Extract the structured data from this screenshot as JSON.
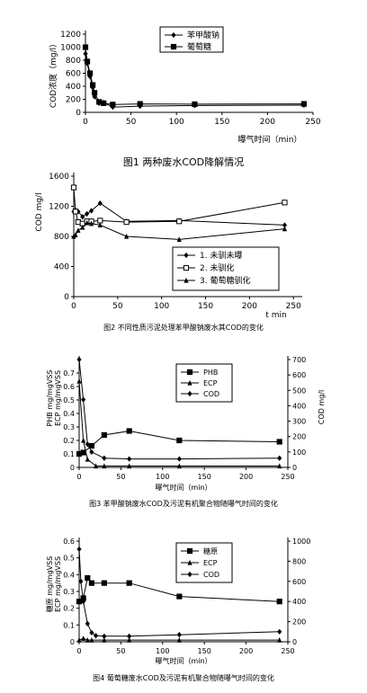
{
  "chart_data": [
    {
      "type": "line",
      "caption": "图1  两种废水COD降解情况",
      "ylabel": "COD浓度（mg/l）",
      "xlabel": "曝气时间（min）",
      "x_ticks": [
        0,
        50,
        100,
        150,
        200,
        250
      ],
      "y_ticks": [
        0,
        200,
        400,
        600,
        800,
        1000,
        1200
      ],
      "xlim": [
        0,
        250
      ],
      "ylim": [
        0,
        1200
      ],
      "legend_position": "top-center",
      "grid": false,
      "series": [
        {
          "name": "苯甲酸钠",
          "marker": "diamond",
          "x": [
            0,
            2,
            5,
            8,
            10,
            15,
            20,
            30,
            60,
            120,
            240
          ],
          "y": [
            900,
            750,
            550,
            380,
            240,
            140,
            150,
            80,
            95,
            105,
            110
          ]
        },
        {
          "name": "葡萄糖",
          "marker": "square",
          "x": [
            0,
            2,
            5,
            8,
            10,
            15,
            20,
            30,
            60,
            120,
            240
          ],
          "y": [
            1000,
            780,
            600,
            420,
            300,
            160,
            140,
            120,
            130,
            125,
            130
          ]
        }
      ]
    },
    {
      "type": "line",
      "caption": "图2 不同性质污泥处理苯甲酸钠废水其COD的变化",
      "ylabel": "COD mg/l",
      "xlabel": "t min",
      "x_ticks": [
        0,
        50,
        100,
        150,
        200,
        250
      ],
      "y_ticks": [
        0,
        400,
        800,
        1200,
        1600
      ],
      "xlim": [
        0,
        260
      ],
      "ylim": [
        0,
        1600
      ],
      "legend_position": "lower-right",
      "grid": false,
      "series": [
        {
          "name": "1. 未驯未曝",
          "marker": "diamond",
          "x": [
            0,
            2,
            5,
            10,
            15,
            20,
            30,
            60,
            120,
            240
          ],
          "y": [
            1130,
            1150,
            1130,
            1060,
            1100,
            1140,
            1240,
            1000,
            1010,
            950
          ]
        },
        {
          "name": "2. 未驯化",
          "marker": "square",
          "x": [
            0,
            2,
            5,
            10,
            15,
            20,
            30,
            60,
            120,
            240
          ],
          "y": [
            1450,
            1130,
            990,
            970,
            1000,
            1000,
            1010,
            990,
            1000,
            1250
          ]
        },
        {
          "name": "3. 葡萄糖驯化",
          "marker": "triangle",
          "x": [
            0,
            2,
            5,
            10,
            15,
            20,
            30,
            60,
            120,
            240
          ],
          "y": [
            800,
            820,
            880,
            920,
            980,
            970,
            950,
            800,
            760,
            900
          ]
        }
      ]
    },
    {
      "type": "line",
      "caption": "图3 苯甲酸钠废水COD及污泥有机聚合物随曝气时间的变化",
      "ylabel": "PHB mg/mgVSS\nECP mg/mgVSS",
      "ylabel_right": "COD mg/l",
      "xlabel": "曝气时间（min）",
      "x_ticks": [
        0,
        50,
        100,
        150,
        200,
        250
      ],
      "y_ticks": [
        0,
        0.1,
        0.2,
        0.3,
        0.4,
        0.5,
        0.6,
        0.7
      ],
      "y2_ticks": [
        0,
        100,
        200,
        300,
        400,
        500,
        600,
        700
      ],
      "xlim": [
        0,
        250
      ],
      "ylim": [
        0,
        0.8
      ],
      "y2lim": [
        0,
        700
      ],
      "legend_position": "top-center",
      "grid": false,
      "series": [
        {
          "name": "PHB",
          "marker": "square",
          "axis": "left",
          "x": [
            0,
            5,
            15,
            30,
            60,
            120,
            240
          ],
          "y": [
            0.1,
            0.11,
            0.16,
            0.24,
            0.27,
            0.2,
            0.19
          ]
        },
        {
          "name": "ECP",
          "marker": "triangle",
          "axis": "left",
          "x": [
            0,
            5,
            10,
            20,
            30,
            60,
            120,
            240
          ],
          "y": [
            0.64,
            0.2,
            0.06,
            0.01,
            0.01,
            0.01,
            0.01,
            0.01
          ]
        },
        {
          "name": "COD",
          "marker": "diamond",
          "axis": "right",
          "x": [
            0,
            5,
            10,
            15,
            30,
            60,
            120,
            240
          ],
          "y": [
            700,
            440,
            150,
            100,
            60,
            55,
            55,
            60
          ]
        }
      ]
    },
    {
      "type": "line",
      "caption": "图4 葡萄糖废水COD及污泥有机聚合物随曝气时间的变化",
      "ylabel": "糖原 mg/mgVSS\nECP mg/mgVSS",
      "xlabel": "曝气时间（min）",
      "x_ticks": [
        0,
        50,
        100,
        150,
        200,
        250
      ],
      "y_ticks": [
        0,
        0.1,
        0.2,
        0.3,
        0.4,
        0.5,
        0.6
      ],
      "y2_ticks": [
        0,
        200,
        400,
        600,
        800,
        1000
      ],
      "xlim": [
        0,
        250
      ],
      "ylim": [
        0,
        0.6
      ],
      "y2lim": [
        0,
        1000
      ],
      "legend_position": "top-center",
      "grid": false,
      "series": [
        {
          "name": "糖原",
          "marker": "square",
          "axis": "left",
          "x": [
            0,
            5,
            10,
            15,
            30,
            60,
            120,
            240
          ],
          "y": [
            0.24,
            0.26,
            0.38,
            0.35,
            0.35,
            0.35,
            0.27,
            0.24
          ]
        },
        {
          "name": "ECP",
          "marker": "triangle",
          "axis": "left",
          "x": [
            0,
            5,
            10,
            15,
            30,
            60,
            120,
            240
          ],
          "y": [
            0.01,
            0.02,
            0.01,
            0.01,
            0.01,
            0.01,
            0.01,
            0.01
          ]
        },
        {
          "name": "COD",
          "marker": "diamond",
          "axis": "right",
          "x": [
            0,
            2,
            5,
            10,
            15,
            20,
            30,
            60,
            120,
            240
          ],
          "y": [
            920,
            600,
            400,
            180,
            90,
            60,
            55,
            55,
            70,
            100
          ]
        }
      ]
    }
  ]
}
